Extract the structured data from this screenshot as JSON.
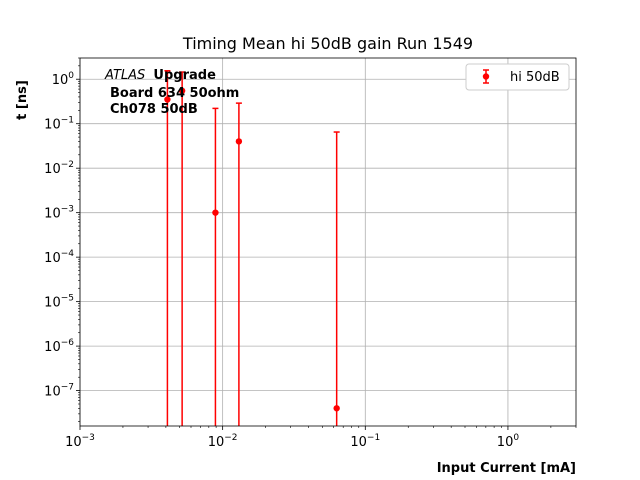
{
  "chart_data": {
    "type": "scatter",
    "title": "Timing Mean hi 50dB gain Run 1549",
    "xlabel": "Input Current [mA]",
    "ylabel": "t [ns]",
    "xscale": "log",
    "yscale": "log",
    "xlim": [
      0.001,
      3
    ],
    "ylim": [
      1.6e-08,
      3
    ],
    "grid": true,
    "legend": {
      "placement": "top-right",
      "entries": [
        "hi 50dB"
      ]
    },
    "annotations": {
      "experiment_italic": "ATLAS",
      "experiment_bold": "Upgrade",
      "board": "Board 634 50ohm",
      "channel": "Ch078 50dB"
    },
    "x_ticks": [
      {
        "value": 0.001,
        "base": "10",
        "exp": "−3"
      },
      {
        "value": 0.01,
        "base": "10",
        "exp": "−2"
      },
      {
        "value": 0.1,
        "base": "10",
        "exp": "−1"
      },
      {
        "value": 1,
        "base": "10",
        "exp": "0"
      }
    ],
    "y_ticks": [
      {
        "value": 1e-07,
        "base": "10",
        "exp": "−7"
      },
      {
        "value": 1e-06,
        "base": "10",
        "exp": "−6"
      },
      {
        "value": 1e-05,
        "base": "10",
        "exp": "−5"
      },
      {
        "value": 0.0001,
        "base": "10",
        "exp": "−4"
      },
      {
        "value": 0.001,
        "base": "10",
        "exp": "−3"
      },
      {
        "value": 0.01,
        "base": "10",
        "exp": "−2"
      },
      {
        "value": 0.1,
        "base": "10",
        "exp": "−1"
      },
      {
        "value": 1,
        "base": "10",
        "exp": "0"
      }
    ],
    "series": [
      {
        "name": "hi 50dB",
        "color": "#ff0000",
        "points": [
          {
            "x": 0.0041,
            "y": 0.35,
            "yerr_low": 0.35,
            "yerr_high": 1.2
          },
          {
            "x": 0.0052,
            "y": 0.55,
            "yerr_low": 0.55,
            "yerr_high": 0.9
          },
          {
            "x": 0.0089,
            "y": 0.001,
            "yerr_low": 0.001,
            "yerr_high": 0.22
          },
          {
            "x": 0.013,
            "y": 0.04,
            "yerr_low": 0.04,
            "yerr_high": 0.25
          },
          {
            "x": 0.063,
            "y": 4e-08,
            "yerr_low": 4e-08,
            "yerr_high": 0.065
          }
        ]
      }
    ]
  }
}
